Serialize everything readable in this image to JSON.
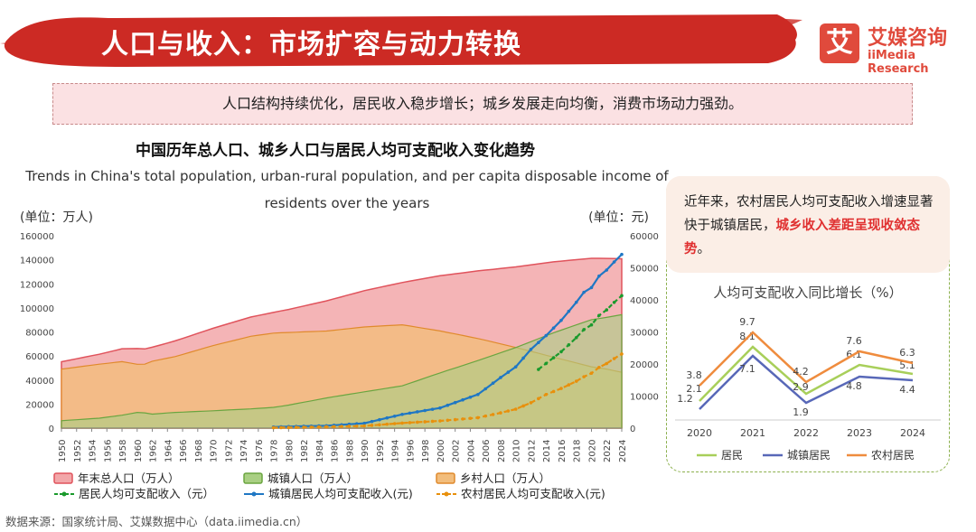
{
  "header": {
    "title": "人口与收入：市场扩容与动力转换",
    "logo_mark": "艾",
    "logo_cn": "艾媒咨询",
    "logo_en": "iiMedia Research",
    "banner_color": "#cc2a24"
  },
  "summary": "人口结构持续优化，居民收入稳步增长；城乡发展走向均衡，消费市场动力强劲。",
  "chart_data": [
    {
      "type": "area+line",
      "title": "中国历年总人口、城乡人口与居民人均可支配收入变化趋势",
      "subtitle": "Trends in China's total population, urban-rural population, and per capita disposable income of residents over the years",
      "ylabel_left": "(单位：万人)",
      "ylabel_right": "(单位：元)",
      "ylim_left": [
        0,
        160000
      ],
      "yticks_left": [
        "0",
        "20000",
        "40000",
        "60000",
        "80000",
        "100000",
        "120000",
        "140000",
        "160000"
      ],
      "ylim_right": [
        0,
        60000
      ],
      "yticks_right": [
        "0",
        "10000",
        "20000",
        "30000",
        "40000",
        "50000",
        "60000"
      ],
      "xticks": [
        "1950",
        "1952",
        "1954",
        "1956",
        "1958",
        "1960",
        "1962",
        "1964",
        "1966",
        "1968",
        "1970",
        "1972",
        "1974",
        "1976",
        "1978",
        "1980",
        "1982",
        "1984",
        "1986",
        "1988",
        "1990",
        "1992",
        "1994",
        "1996",
        "1998",
        "2000",
        "2002",
        "2004",
        "2006",
        "2008",
        "2010",
        "2012",
        "2014",
        "2016",
        "2018",
        "2020",
        "2022",
        "2024"
      ],
      "area_keypoints": {
        "x": [
          1950,
          1955,
          1958,
          1960,
          1961,
          1962,
          1965,
          1970,
          1975,
          1978,
          1980,
          1985,
          1990,
          1995,
          2000,
          2005,
          2010,
          2015,
          2020,
          2022,
          2024
        ],
        "total": [
          55196,
          61465,
          65994,
          66207,
          65859,
          67296,
          72538,
          82992,
          92420,
          96259,
          98705,
          105851,
          114333,
          121121,
          126743,
          130756,
          134091,
          138326,
          141212,
          141175,
          140828
        ],
        "urban": [
          6169,
          8285,
          10721,
          13073,
          12707,
          11659,
          13045,
          14424,
          16030,
          17245,
          19140,
          25094,
          30195,
          35174,
          45906,
          56212,
          66978,
          79302,
          90220,
          92071,
          94350
        ],
        "rural": [
          49027,
          53180,
          55273,
          53134,
          53152,
          55636,
          59493,
          68568,
          76390,
          79014,
          79565,
          80757,
          84138,
          85947,
          80837,
          74544,
          67113,
          59024,
          50992,
          49104,
          46478
        ]
      },
      "income_series": [
        {
          "name": "居民人均可支配收入（元）",
          "color": "#1a9a2c",
          "style": "dashed",
          "x": [
            2013,
            2014,
            2015,
            2016,
            2017,
            2018,
            2019,
            2020,
            2021,
            2022,
            2023,
            2024
          ],
          "values": [
            18311,
            20167,
            21966,
            23821,
            25974,
            28228,
            30733,
            32189,
            35128,
            36883,
            39218,
            41314
          ]
        },
        {
          "name": "城镇居民人均可支配收入(元)",
          "color": "#1f77c4",
          "style": "solid",
          "x": [
            1978,
            1980,
            1985,
            1990,
            1995,
            2000,
            2005,
            2008,
            2010,
            2012,
            2014,
            2016,
            2018,
            2019,
            2020,
            2021,
            2022,
            2023,
            2024
          ],
          "values": [
            343,
            478,
            739,
            1510,
            4283,
            6280,
            10493,
            15781,
            19109,
            24565,
            28844,
            33616,
            39251,
            42359,
            43834,
            47412,
            49283,
            51821,
            54188
          ]
        },
        {
          "name": "农村居民人均可支配收入(元)",
          "color": "#e8900c",
          "style": "dashed",
          "x": [
            1978,
            1980,
            1985,
            1990,
            1995,
            2000,
            2005,
            2008,
            2010,
            2012,
            2014,
            2016,
            2018,
            2019,
            2020,
            2021,
            2022,
            2023,
            2024
          ],
          "values": [
            134,
            191,
            398,
            686,
            1578,
            2253,
            3255,
            4761,
            5919,
            7917,
            10489,
            12363,
            14617,
            16021,
            17131,
            18931,
            20133,
            21691,
            23119
          ]
        }
      ],
      "area_legend": [
        {
          "name": "年末总人口（万人）",
          "color": "#f2a7a9",
          "border": "#e0535c"
        },
        {
          "name": "城镇人口（万人）",
          "color": "#a9cf83",
          "border": "#6aa540"
        },
        {
          "name": "乡村人口（万人）",
          "color": "#f2bd7c",
          "border": "#e08a2c"
        }
      ]
    },
    {
      "type": "line",
      "title": "人均可支配收入同比增长（%）",
      "categories": [
        "2020",
        "2021",
        "2022",
        "2023",
        "2024"
      ],
      "ylim": [
        0,
        11
      ],
      "series": [
        {
          "name": "居民",
          "color": "#a8cf5a",
          "values": [
            2.1,
            8.1,
            2.9,
            6.1,
            5.1
          ]
        },
        {
          "name": "城镇居民",
          "color": "#5868b8",
          "values": [
            1.2,
            7.1,
            1.9,
            4.8,
            4.4
          ]
        },
        {
          "name": "农村居民",
          "color": "#ef8c3e",
          "values": [
            3.8,
            9.7,
            4.2,
            7.6,
            6.3
          ]
        }
      ]
    }
  ],
  "note": {
    "text_before": "近年来，农村居民人均可支配收入增速显著快于城镇居民，",
    "highlight": "城乡收入差距呈现收敛态势",
    "text_after": "。"
  },
  "source": "数据来源：国家统计局、艾媒数据中心（data.iimedia.cn）"
}
